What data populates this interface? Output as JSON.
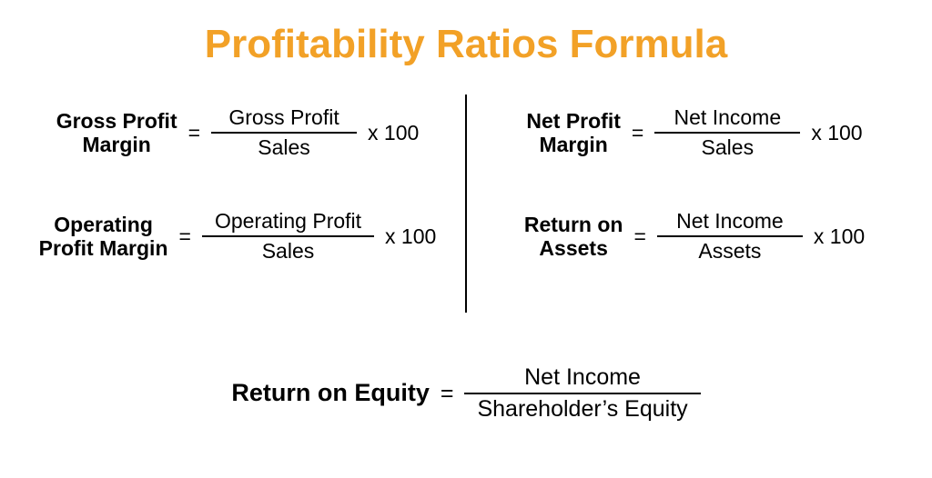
{
  "title": "Profitability Ratios Formula",
  "title_color": "#f2a127",
  "background_color": "#ffffff",
  "text_color": "#000000",
  "divider_color": "#000000",
  "frac_line_color": "#000000",
  "title_fontsize": 44,
  "formula_fontsize": 23,
  "bottom_formula_fontsize": 25,
  "formulas": {
    "gross_profit_margin": {
      "lhs": "Gross Profit\nMargin",
      "numerator": "Gross Profit",
      "denominator": "Sales",
      "multiplier": "x 100"
    },
    "operating_profit_margin": {
      "lhs": "Operating\nProfit Margin",
      "numerator": "Operating Profit",
      "denominator": "Sales",
      "multiplier": "x 100"
    },
    "net_profit_margin": {
      "lhs": "Net Profit\nMargin",
      "numerator": "Net Income",
      "denominator": "Sales",
      "multiplier": "x 100"
    },
    "return_on_assets": {
      "lhs": "Return on\nAssets",
      "numerator": "Net Income",
      "denominator": "Assets",
      "multiplier": "x 100"
    },
    "return_on_equity": {
      "lhs": "Return on Equity",
      "numerator": "Net Income",
      "denominator": "Shareholder’s Equity",
      "multiplier": ""
    }
  },
  "equals": "="
}
